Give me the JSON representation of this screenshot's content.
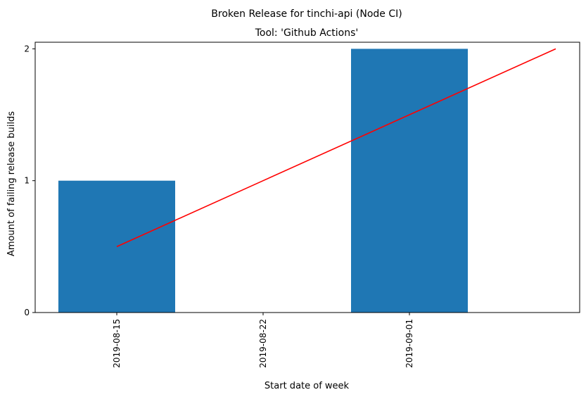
{
  "chart_data": {
    "type": "bar",
    "title": "Broken Release for tinchi-api (Node CI)",
    "subtitle": "Tool: 'Github Actions'",
    "xlabel": "Start date of week",
    "ylabel": "Amount of failing release builds",
    "categories": [
      "2019-08-15",
      "2019-08-22",
      "2019-09-01"
    ],
    "ylim": [
      0,
      2.05
    ],
    "yticks": [
      0,
      1,
      2
    ],
    "series": [
      {
        "kind": "bar",
        "values": [
          1,
          0,
          2
        ],
        "color": "#1f77b4"
      },
      {
        "kind": "line",
        "x": [
          0,
          1,
          2,
          3
        ],
        "values": [
          0.5,
          1.0,
          1.5,
          2.0
        ],
        "color": "#ff0000"
      }
    ],
    "grid": false,
    "legend": "none"
  }
}
